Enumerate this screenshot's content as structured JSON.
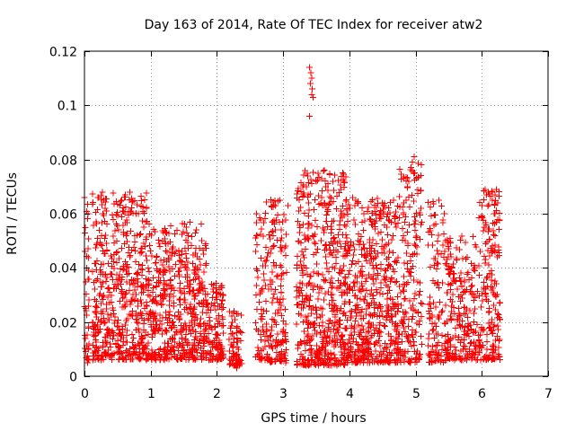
{
  "chart_data": {
    "type": "scatter",
    "title": "Day 163 of 2014, Rate Of TEC Index for receiver atw2",
    "xlabel": "GPS time / hours",
    "ylabel": "ROTI / TECUs",
    "xlim": [
      0,
      7
    ],
    "ylim": [
      0,
      0.12
    ],
    "x_ticks": [
      "0",
      "1",
      "2",
      "3",
      "4",
      "5",
      "6",
      "7"
    ],
    "y_ticks": [
      "0",
      "0.02",
      "0.04",
      "0.06",
      "0.08",
      "0.1",
      "0.12"
    ],
    "grid": true,
    "marker": "+",
    "series": [
      {
        "name": "ROTI",
        "color": "#ff0000",
        "clusters": [
          {
            "x": [
              0.0,
              0.08
            ],
            "y": [
              0.006,
              0.066
            ],
            "n": 40
          },
          {
            "x": [
              0.12,
              0.95
            ],
            "y": [
              0.006,
              0.068
            ],
            "n": 520
          },
          {
            "x": [
              0.95,
              1.85
            ],
            "y": [
              0.006,
              0.057
            ],
            "n": 520
          },
          {
            "x": [
              1.85,
              2.1
            ],
            "y": [
              0.006,
              0.035
            ],
            "n": 120
          },
          {
            "x": [
              2.18,
              2.38
            ],
            "y": [
              0.004,
              0.027
            ],
            "n": 70
          },
          {
            "x": [
              2.58,
              2.72
            ],
            "y": [
              0.006,
              0.06
            ],
            "n": 55
          },
          {
            "x": [
              2.72,
              3.05
            ],
            "y": [
              0.005,
              0.066
            ],
            "n": 170
          },
          {
            "x": [
              3.2,
              3.95
            ],
            "y": [
              0.004,
              0.076
            ],
            "n": 520
          },
          {
            "x": [
              3.95,
              4.75
            ],
            "y": [
              0.005,
              0.066
            ],
            "n": 520
          },
          {
            "x": [
              4.75,
              5.1
            ],
            "y": [
              0.005,
              0.081
            ],
            "n": 180
          },
          {
            "x": [
              5.18,
              5.45
            ],
            "y": [
              0.005,
              0.065
            ],
            "n": 110
          },
          {
            "x": [
              5.45,
              5.95
            ],
            "y": [
              0.006,
              0.052
            ],
            "n": 230
          },
          {
            "x": [
              5.95,
              6.28
            ],
            "y": [
              0.006,
              0.069
            ],
            "n": 190
          }
        ],
        "points": [
          [
            3.4,
            0.114
          ],
          [
            3.42,
            0.112
          ],
          [
            3.43,
            0.11
          ],
          [
            3.41,
            0.108
          ],
          [
            3.44,
            0.106
          ],
          [
            3.43,
            0.104
          ],
          [
            3.4,
            0.096
          ],
          [
            3.45,
            0.103
          ],
          [
            4.98,
            0.081
          ],
          [
            4.95,
            0.079
          ],
          [
            4.93,
            0.077
          ],
          [
            4.97,
            0.075
          ],
          [
            4.9,
            0.072
          ],
          [
            4.88,
            0.07
          ],
          [
            3.62,
            0.076
          ],
          [
            3.58,
            0.073
          ],
          [
            0.0,
            0.066
          ],
          [
            0.27,
            0.068
          ],
          [
            0.29,
            0.065
          ],
          [
            0.31,
            0.062
          ],
          [
            0.33,
            0.061
          ],
          [
            2.95,
            0.065
          ],
          [
            3.07,
            0.063
          ],
          [
            3.35,
            0.07
          ],
          [
            3.38,
            0.067
          ],
          [
            4.05,
            0.066
          ],
          [
            4.1,
            0.065
          ],
          [
            5.35,
            0.065
          ],
          [
            6.05,
            0.069
          ],
          [
            6.22,
            0.069
          ],
          [
            6.2,
            0.067
          ],
          [
            6.24,
            0.064
          ],
          [
            2.6,
            0.06
          ],
          [
            2.25,
            0.004
          ],
          [
            2.3,
            0.003
          ],
          [
            0.05,
            0.005
          ]
        ]
      }
    ]
  }
}
